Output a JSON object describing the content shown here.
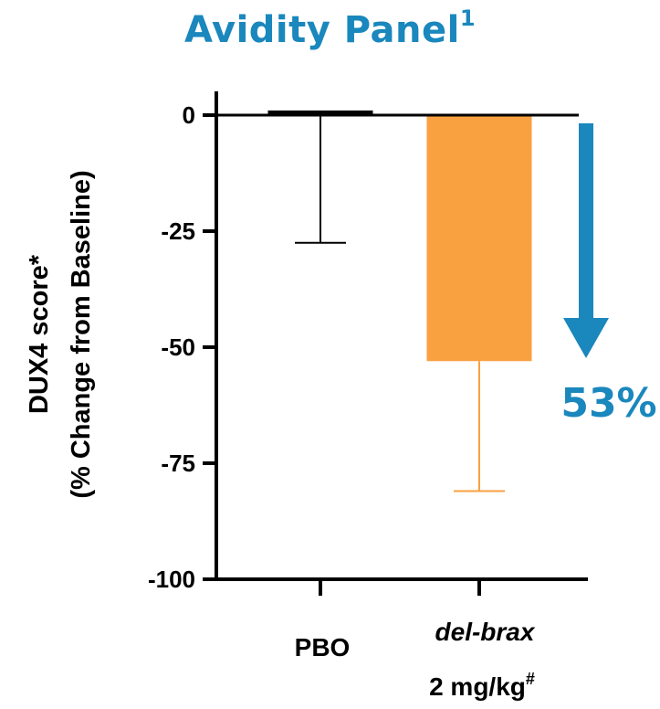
{
  "chart_data": {
    "type": "bar",
    "title": "Avidity Panel",
    "title_superscript": "1",
    "ylabel_line1": "DUX4 score*",
    "ylabel_line2": "(% Change from Baseline)",
    "xlabel": "",
    "ylim": [
      -100,
      0
    ],
    "yticks": [
      0,
      -25,
      -50,
      -75,
      -100
    ],
    "ytick_labels": [
      "0",
      "-25",
      "-50",
      "-75",
      "-100"
    ],
    "grid": false,
    "categories": [
      {
        "line1": "PBO",
        "line1_italic": false,
        "line2": "",
        "line2_superscript": ""
      },
      {
        "line1": "del-brax",
        "line1_italic": true,
        "line2": "2 mg/kg",
        "line2_superscript": "#"
      }
    ],
    "values": [
      1.0,
      -53
    ],
    "error_lower": [
      -27.5,
      -81
    ],
    "colors": [
      "#000000",
      "#f9a040"
    ],
    "annotation": {
      "text": "53%",
      "color": "#1a87bd",
      "direction": "down-arrow"
    }
  }
}
